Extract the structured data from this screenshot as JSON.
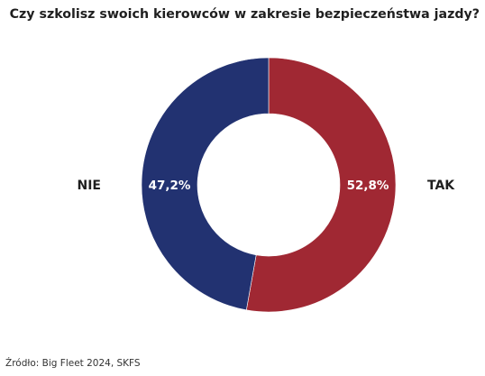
{
  "title": "Czy szkolisz swoich kierowców w zakresie bezpieczeństwa jazdy?",
  "source": "Źródło: Big Fleet 2024, SKFS",
  "chart_data": {
    "type": "pie",
    "donut": true,
    "title": "Czy szkolisz swoich kierowców w zakresie bezpieczeństwa jazdy?",
    "categories": [
      "TAK",
      "NIE"
    ],
    "values": [
      52.8,
      47.2
    ],
    "value_labels": [
      "52,8%",
      "47,2%"
    ],
    "colors": [
      "#a02833",
      "#223271"
    ],
    "start_angle": "12 o'clock",
    "direction": "clockwise",
    "legend": "none",
    "category_label_placement": "outside-left-right"
  }
}
